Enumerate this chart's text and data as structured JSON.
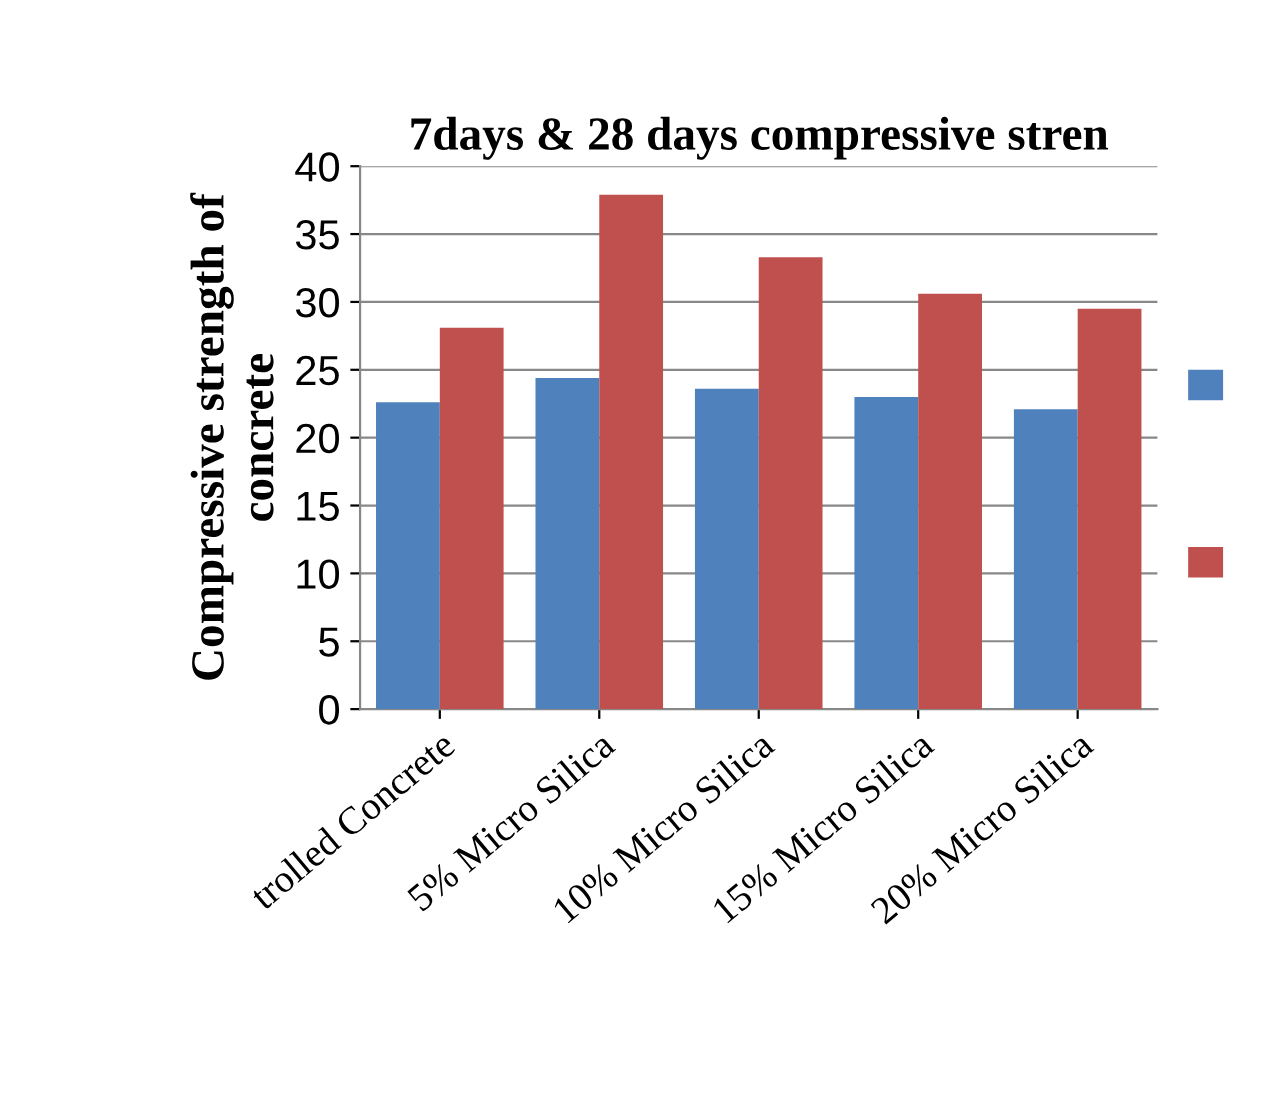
{
  "chart_data": {
    "type": "bar",
    "title": "7days & 28 days compressive stren",
    "ylabel": "Compressive strength of\nconcrete",
    "categories": [
      "trolled Concrete",
      "5% Micro Silica",
      "10% Micro Silica",
      "15% Micro Silica",
      "20% Micro Silica"
    ],
    "series": [
      {
        "color": "#4f81bd",
        "values": [
          22.6,
          24.4,
          23.6,
          23.0,
          22.1
        ]
      },
      {
        "color": "#c0504d",
        "values": [
          28.1,
          37.9,
          33.3,
          30.6,
          29.5
        ]
      }
    ],
    "ylim": [
      0,
      40
    ],
    "yticks": [
      0,
      5,
      10,
      15,
      20,
      25,
      30,
      35,
      40
    ],
    "grid": "y"
  }
}
